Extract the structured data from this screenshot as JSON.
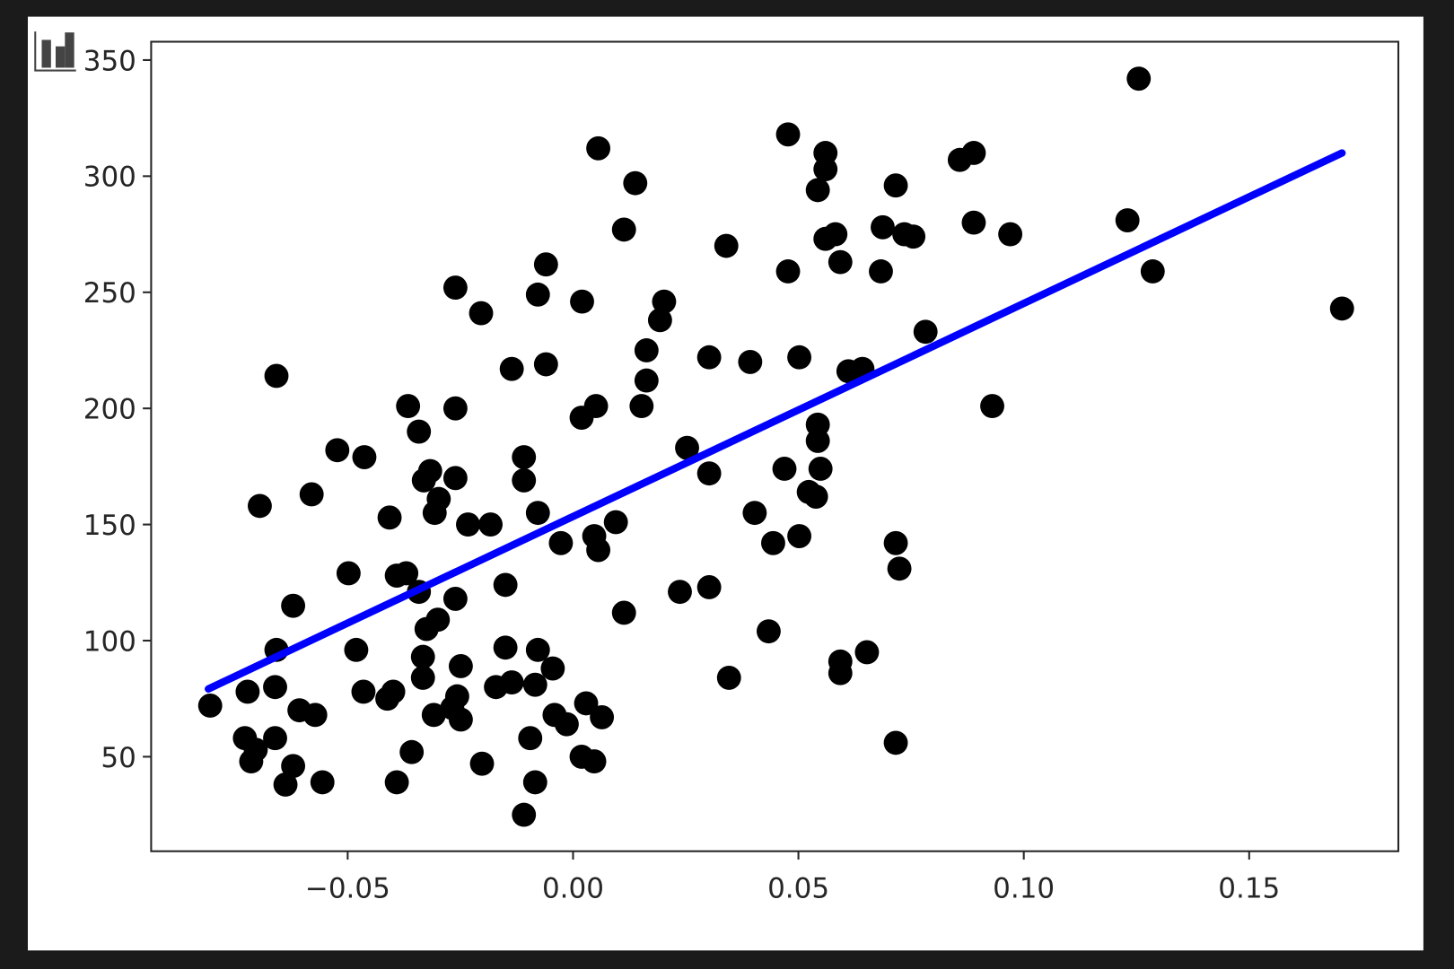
{
  "icon": "bar-chart-icon",
  "chart_data": {
    "type": "scatter",
    "title": "",
    "xlabel": "",
    "ylabel": "",
    "xlim": [
      -0.0936,
      0.1831
    ],
    "ylim": [
      9.3,
      357.9
    ],
    "grid": false,
    "xticks": [
      -0.05,
      0.0,
      0.05,
      0.1,
      0.15
    ],
    "xtick_labels": [
      "−0.05",
      "0.00",
      "0.05",
      "0.10",
      "0.15"
    ],
    "yticks": [
      50,
      100,
      150,
      200,
      250,
      300,
      350
    ],
    "ytick_labels": [
      "50",
      "100",
      "150",
      "200",
      "250",
      "300",
      "350"
    ],
    "colors": {
      "points": "#000000",
      "line": "#0000ff",
      "background": "#ffffff",
      "page": "#1b1b1b"
    },
    "points": [
      [
        0.1255,
        342
      ],
      [
        0.0056,
        312
      ],
      [
        0.0477,
        318
      ],
      [
        0.056,
        310
      ],
      [
        0.056,
        303
      ],
      [
        0.0543,
        294
      ],
      [
        0.0858,
        307
      ],
      [
        0.0889,
        310
      ],
      [
        0.0138,
        297
      ],
      [
        0.0716,
        296
      ],
      [
        0.0113,
        277
      ],
      [
        0.034,
        270
      ],
      [
        0.0687,
        278
      ],
      [
        0.0735,
        275
      ],
      [
        0.0755,
        274
      ],
      [
        0.0889,
        280
      ],
      [
        0.097,
        275
      ],
      [
        0.123,
        281
      ],
      [
        0.056,
        273
      ],
      [
        0.0582,
        275
      ],
      [
        0.0593,
        263
      ],
      [
        0.0477,
        259
      ],
      [
        0.0683,
        259
      ],
      [
        0.1286,
        259
      ],
      [
        0.1706,
        243
      ],
      [
        -0.006,
        262
      ],
      [
        -0.0261,
        252
      ],
      [
        -0.0078,
        249
      ],
      [
        0.002,
        246
      ],
      [
        -0.0204,
        241
      ],
      [
        0.0202,
        246
      ],
      [
        0.0193,
        238
      ],
      [
        0.0782,
        233
      ],
      [
        0.0163,
        225
      ],
      [
        0.0302,
        222
      ],
      [
        0.0393,
        220
      ],
      [
        0.0502,
        222
      ],
      [
        -0.0136,
        217
      ],
      [
        -0.006,
        219
      ],
      [
        0.0163,
        212
      ],
      [
        0.0611,
        216
      ],
      [
        0.0642,
        217
      ],
      [
        -0.0658,
        214
      ],
      [
        -0.0366,
        201
      ],
      [
        -0.0261,
        200
      ],
      [
        0.0051,
        201
      ],
      [
        0.0019,
        196
      ],
      [
        0.0152,
        201
      ],
      [
        0.093,
        201
      ],
      [
        -0.0342,
        190
      ],
      [
        0.0543,
        193
      ],
      [
        0.0543,
        186
      ],
      [
        -0.0523,
        182
      ],
      [
        -0.0463,
        179
      ],
      [
        -0.0109,
        179
      ],
      [
        0.0253,
        183
      ],
      [
        -0.0317,
        173
      ],
      [
        -0.0331,
        169
      ],
      [
        -0.0261,
        170
      ],
      [
        -0.0109,
        169
      ],
      [
        0.0302,
        172
      ],
      [
        0.0469,
        174
      ],
      [
        0.0549,
        174
      ],
      [
        -0.058,
        163
      ],
      [
        0.0523,
        164
      ],
      [
        0.0539,
        162
      ],
      [
        -0.0695,
        158
      ],
      [
        -0.0298,
        161
      ],
      [
        -0.0307,
        155
      ],
      [
        -0.0078,
        155
      ],
      [
        -0.0407,
        153
      ],
      [
        -0.0233,
        150
      ],
      [
        -0.0183,
        150
      ],
      [
        0.0095,
        151
      ],
      [
        0.0403,
        155
      ],
      [
        0.0047,
        145
      ],
      [
        0.0502,
        145
      ],
      [
        -0.0027,
        142
      ],
      [
        0.0056,
        139
      ],
      [
        0.0444,
        142
      ],
      [
        0.0716,
        142
      ],
      [
        0.0724,
        131
      ],
      [
        -0.0498,
        129
      ],
      [
        -0.0391,
        128
      ],
      [
        -0.037,
        129
      ],
      [
        -0.0342,
        121
      ],
      [
        -0.015,
        124
      ],
      [
        0.0237,
        121
      ],
      [
        0.0302,
        123
      ],
      [
        -0.0261,
        118
      ],
      [
        -0.0621,
        115
      ],
      [
        0.0113,
        112
      ],
      [
        -0.03,
        109
      ],
      [
        -0.0325,
        105
      ],
      [
        0.0434,
        104
      ],
      [
        -0.0658,
        96
      ],
      [
        -0.0481,
        96
      ],
      [
        -0.015,
        97
      ],
      [
        -0.0078,
        96
      ],
      [
        0.0652,
        95
      ],
      [
        -0.0333,
        93
      ],
      [
        0.0593,
        91
      ],
      [
        0.0593,
        86
      ],
      [
        -0.0249,
        89
      ],
      [
        -0.0045,
        88
      ],
      [
        -0.0333,
        84
      ],
      [
        0.0346,
        84
      ],
      [
        -0.0722,
        78
      ],
      [
        -0.0661,
        80
      ],
      [
        -0.0465,
        78
      ],
      [
        -0.0399,
        78
      ],
      [
        -0.0412,
        75
      ],
      [
        -0.0136,
        82
      ],
      [
        -0.0171,
        80
      ],
      [
        -0.0084,
        81
      ],
      [
        -0.0257,
        76
      ],
      [
        -0.0268,
        71
      ],
      [
        -0.0805,
        72
      ],
      [
        -0.0607,
        70
      ],
      [
        -0.0572,
        68
      ],
      [
        0.0029,
        73
      ],
      [
        -0.0309,
        68
      ],
      [
        -0.0249,
        66
      ],
      [
        -0.0041,
        68
      ],
      [
        -0.0014,
        64
      ],
      [
        0.0064,
        67
      ],
      [
        -0.0728,
        58
      ],
      [
        -0.0661,
        58
      ],
      [
        -0.0704,
        53
      ],
      [
        -0.0095,
        58
      ],
      [
        -0.0714,
        48
      ],
      [
        -0.0358,
        52
      ],
      [
        0.0716,
        56
      ],
      [
        0.0019,
        50
      ],
      [
        0.0047,
        48
      ],
      [
        -0.0202,
        47
      ],
      [
        -0.0621,
        46
      ],
      [
        -0.0638,
        38
      ],
      [
        -0.0556,
        39
      ],
      [
        -0.0391,
        39
      ],
      [
        -0.0084,
        39
      ],
      [
        -0.0109,
        25
      ]
    ],
    "fit_line": {
      "x": [
        -0.0809,
        0.1706
      ],
      "y": [
        79.2,
        310
      ]
    }
  }
}
